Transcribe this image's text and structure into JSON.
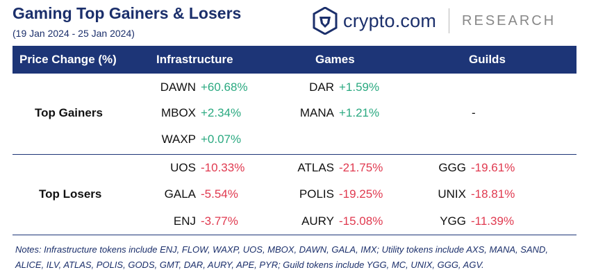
{
  "header": {
    "title": "Gaming Top Gainers & Losers",
    "subtitle": "(19 Jan 2024 - 25 Jan 2024)",
    "brand": "crypto.com",
    "research": "RESEARCH"
  },
  "chart_data": {
    "type": "table",
    "columns": [
      "Price Change (%)",
      "Infrastructure",
      "Games",
      "Guilds"
    ],
    "rows": [
      {
        "label": "Top Gainers",
        "infrastructure": [
          {
            "token": "DAWN",
            "change": "+60.68%"
          },
          {
            "token": "MBOX",
            "change": "+2.34%"
          },
          {
            "token": "WAXP",
            "change": "+0.07%"
          }
        ],
        "games": [
          {
            "token": "DAR",
            "change": "+1.59%"
          },
          {
            "token": "MANA",
            "change": "+1.21%"
          }
        ],
        "guilds_placeholder": "-"
      },
      {
        "label": "Top Losers",
        "infrastructure": [
          {
            "token": "UOS",
            "change": "-10.33%"
          },
          {
            "token": "GALA",
            "change": "-5.54%"
          },
          {
            "token": "ENJ",
            "change": "-3.77%"
          }
        ],
        "games": [
          {
            "token": "ATLAS",
            "change": "-21.75%"
          },
          {
            "token": "POLIS",
            "change": "-19.25%"
          },
          {
            "token": "AURY",
            "change": "-15.08%"
          }
        ],
        "guilds": [
          {
            "token": "GGG",
            "change": "-19.61%"
          },
          {
            "token": "UNIX",
            "change": "-18.81%"
          },
          {
            "token": "YGG",
            "change": "-11.39%"
          }
        ]
      }
    ],
    "colors": {
      "header_bg": "#1d3577",
      "positive": "#2aa980",
      "negative": "#e0394f"
    }
  },
  "notes": "Notes: Infrastructure tokens include ENJ, FLOW, WAXP, UOS, MBOX, DAWN, GALA, IMX; Utility tokens include AXS, MANA, SAND, ALICE, ILV, ATLAS, POLIS, GODS, GMT, DAR, AURY, APE, PYR; Guild tokens include YGG, MC, UNIX, GGG, AGV."
}
